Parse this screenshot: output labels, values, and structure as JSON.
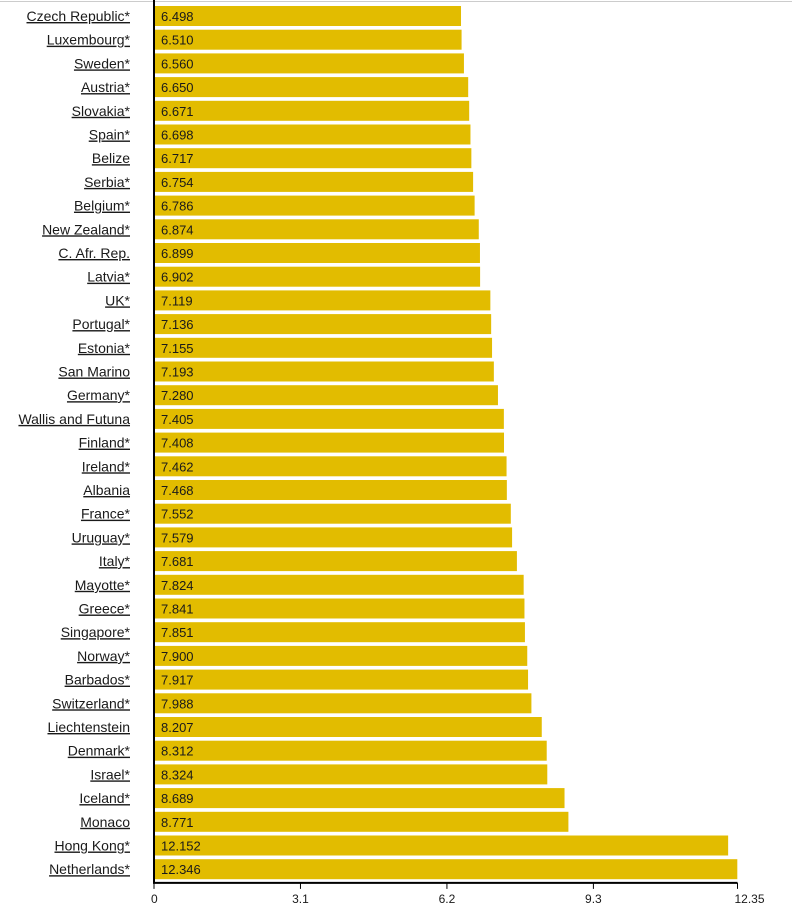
{
  "chart_data": {
    "type": "bar",
    "orientation": "horizontal",
    "title": "",
    "xlabel": "",
    "ylabel": "",
    "bar_color": "#e2bc00",
    "axis_color": "#000000",
    "top_rule_color": "#cccccc",
    "xlim": [
      0,
      12.35
    ],
    "xticks": [
      "0",
      "3.1",
      "6.2",
      "9.3",
      "12.35"
    ],
    "categories": [
      "Czech Republic*",
      "Luxembourg*",
      "Sweden*",
      "Austria*",
      "Slovakia*",
      "Spain*",
      "Belize",
      "Serbia*",
      "Belgium*",
      "New Zealand*",
      "C. Afr. Rep.",
      "Latvia*",
      "UK*",
      "Portugal*",
      "Estonia*",
      "San Marino",
      "Germany*",
      "Wallis and Futuna",
      "Finland*",
      "Ireland*",
      "Albania",
      "France*",
      "Uruguay*",
      "Italy*",
      "Mayotte*",
      "Greece*",
      "Singapore*",
      "Norway*",
      "Barbados*",
      "Switzerland*",
      "Liechtenstein",
      "Denmark*",
      "Israel*",
      "Iceland*",
      "Monaco",
      "Hong Kong*",
      "Netherlands*"
    ],
    "value_labels": [
      "6.498",
      "6.510",
      "6.560",
      "6.650",
      "6.671",
      "6.698",
      "6.717",
      "6.754",
      "6.786",
      "6.874",
      "6.899",
      "6.902",
      "7.119",
      "7.136",
      "7.155",
      "7.193",
      "7.280",
      "7.405",
      "7.408",
      "7.462",
      "7.468",
      "7.552",
      "7.579",
      "7.681",
      "7.824",
      "7.841",
      "7.851",
      "7.900",
      "7.917",
      "7.988",
      "8.207",
      "8.312",
      "8.324",
      "8.689",
      "8.771",
      "12.152",
      "12.346"
    ],
    "values": [
      6.498,
      6.51,
      6.56,
      6.65,
      6.671,
      6.698,
      6.717,
      6.754,
      6.786,
      6.874,
      6.899,
      6.902,
      7.119,
      7.136,
      7.155,
      7.193,
      7.28,
      7.405,
      7.408,
      7.462,
      7.468,
      7.552,
      7.579,
      7.681,
      7.824,
      7.841,
      7.851,
      7.9,
      7.917,
      7.988,
      8.207,
      8.312,
      8.324,
      8.689,
      8.771,
      12.152,
      12.346
    ]
  }
}
